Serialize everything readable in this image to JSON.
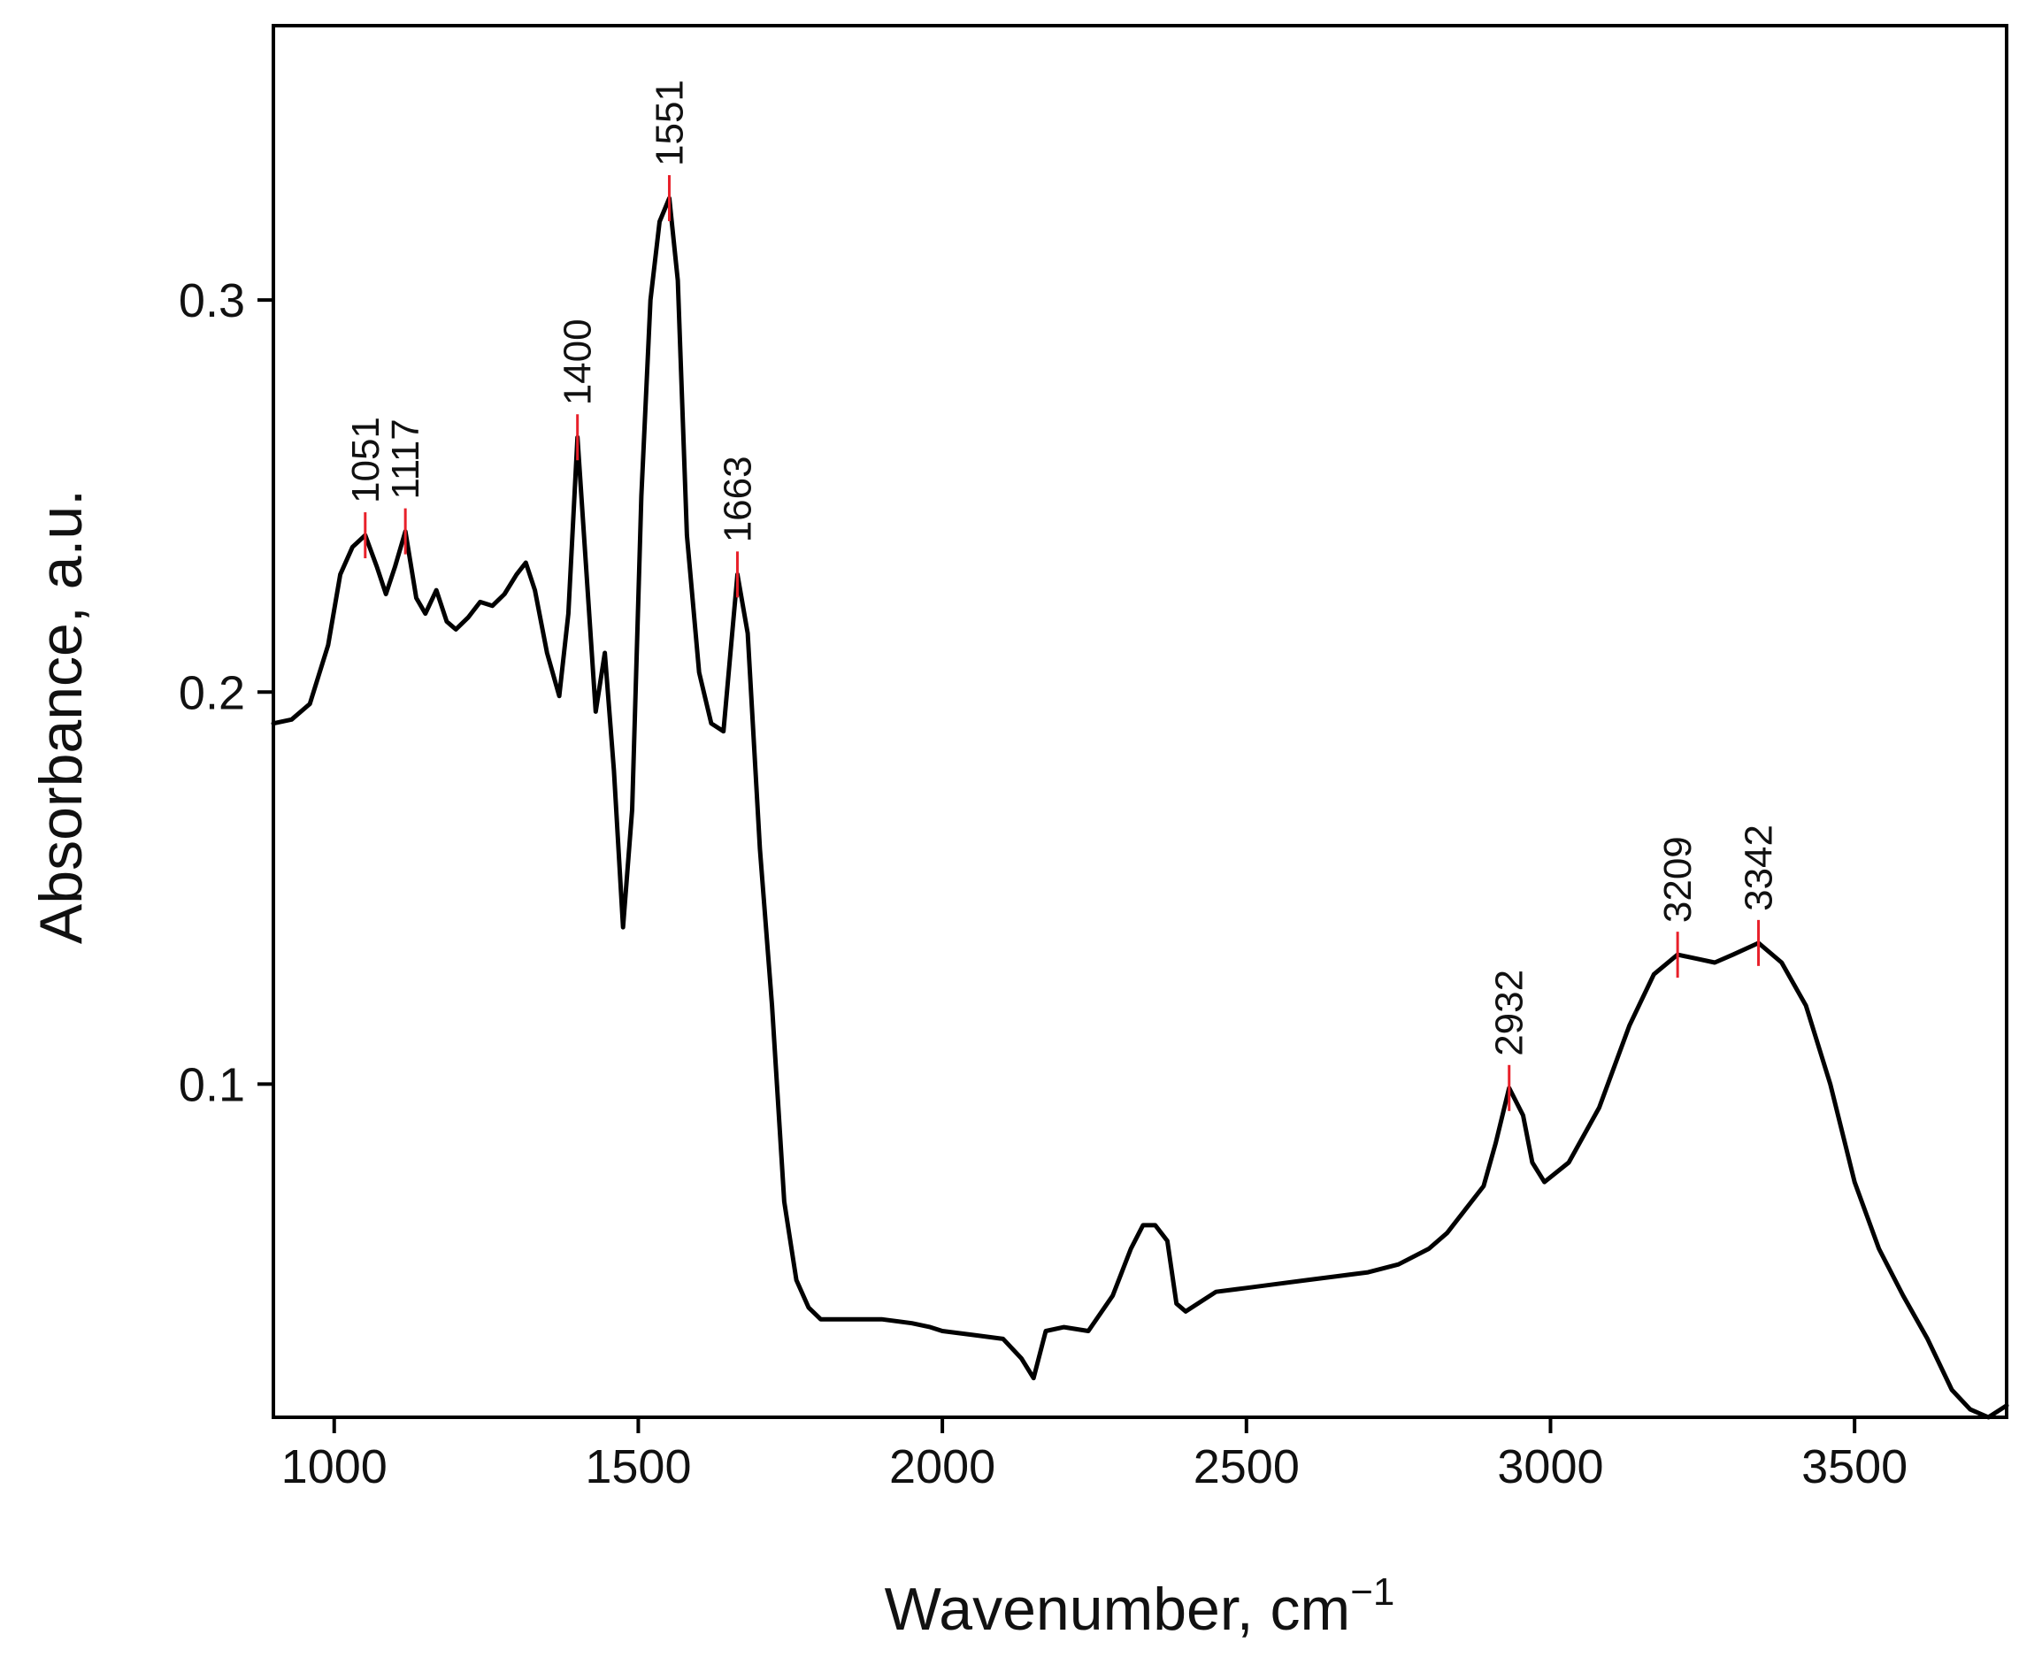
{
  "chart_data": {
    "type": "line",
    "title": "",
    "xlabel": "Wavenumber, cm",
    "xlabel_superscript": "−1",
    "ylabel": "Absorbance, a.u.",
    "xlim": [
      900,
      3750
    ],
    "ylim": [
      0.015,
      0.37
    ],
    "x_ticks": [
      1000,
      1500,
      2000,
      2500,
      3000,
      3500
    ],
    "x_tick_labels": [
      "1000",
      "1500",
      "2000",
      "2500",
      "3000",
      "3500"
    ],
    "y_ticks": [
      0.1,
      0.2,
      0.3
    ],
    "y_tick_labels": [
      "0.1",
      "0.2",
      "0.3"
    ],
    "grid": false,
    "legend": "none",
    "line_color": "#000000",
    "marker_color": "#e8202a",
    "series": [
      {
        "x": [
          900,
          930,
          960,
          990,
          1010,
          1030,
          1051,
          1070,
          1085,
          1100,
          1117,
          1135,
          1150,
          1168,
          1185,
          1200,
          1220,
          1240,
          1260,
          1280,
          1300,
          1315,
          1330,
          1350,
          1370,
          1385,
          1400,
          1415,
          1430,
          1445,
          1460,
          1475,
          1490,
          1505,
          1520,
          1535,
          1551,
          1565,
          1580,
          1600,
          1620,
          1640,
          1663,
          1680,
          1700,
          1720,
          1740,
          1760,
          1780,
          1800,
          1850,
          1900,
          1950,
          1980,
          2000,
          2050,
          2100,
          2130,
          2150,
          2170,
          2200,
          2240,
          2280,
          2310,
          2330,
          2350,
          2370,
          2385,
          2400,
          2450,
          2500,
          2550,
          2600,
          2650,
          2700,
          2750,
          2800,
          2830,
          2860,
          2890,
          2910,
          2932,
          2955,
          2970,
          2990,
          3030,
          3080,
          3130,
          3170,
          3209,
          3240,
          3270,
          3300,
          3342,
          3380,
          3420,
          3460,
          3500,
          3540,
          3580,
          3620,
          3660,
          3690,
          3720,
          3750
        ],
        "y": [
          0.192,
          0.193,
          0.197,
          0.212,
          0.23,
          0.237,
          0.24,
          0.232,
          0.225,
          0.232,
          0.241,
          0.224,
          0.22,
          0.226,
          0.218,
          0.216,
          0.219,
          0.223,
          0.222,
          0.225,
          0.23,
          0.233,
          0.226,
          0.21,
          0.199,
          0.22,
          0.265,
          0.23,
          0.195,
          0.21,
          0.18,
          0.14,
          0.17,
          0.25,
          0.3,
          0.32,
          0.326,
          0.305,
          0.24,
          0.205,
          0.192,
          0.19,
          0.23,
          0.215,
          0.16,
          0.12,
          0.07,
          0.05,
          0.043,
          0.04,
          0.04,
          0.04,
          0.039,
          0.038,
          0.037,
          0.036,
          0.035,
          0.03,
          0.025,
          0.037,
          0.038,
          0.037,
          0.046,
          0.058,
          0.064,
          0.064,
          0.06,
          0.044,
          0.042,
          0.047,
          0.048,
          0.049,
          0.05,
          0.051,
          0.052,
          0.054,
          0.058,
          0.062,
          0.068,
          0.074,
          0.085,
          0.099,
          0.092,
          0.08,
          0.075,
          0.08,
          0.094,
          0.115,
          0.128,
          0.133,
          0.132,
          0.131,
          0.133,
          0.136,
          0.131,
          0.12,
          0.1,
          0.075,
          0.058,
          0.046,
          0.035,
          0.022,
          0.017,
          0.015,
          0.018
        ]
      }
    ],
    "peaks": [
      {
        "label": "1051",
        "x": 1051,
        "y": 0.24
      },
      {
        "label": "1117",
        "x": 1117,
        "y": 0.241
      },
      {
        "label": "1400",
        "x": 1400,
        "y": 0.265
      },
      {
        "label": "1551",
        "x": 1551,
        "y": 0.326
      },
      {
        "label": "1663",
        "x": 1663,
        "y": 0.23
      },
      {
        "label": "2932",
        "x": 2932,
        "y": 0.099
      },
      {
        "label": "3209",
        "x": 3209,
        "y": 0.133
      },
      {
        "label": "3342",
        "x": 3342,
        "y": 0.136
      }
    ]
  }
}
